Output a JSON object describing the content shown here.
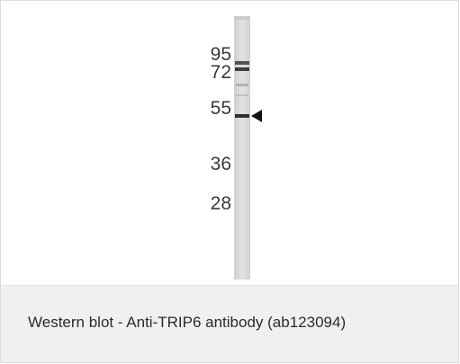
{
  "figure": {
    "markers": [
      {
        "label": "95"
      },
      {
        "label": "72"
      },
      {
        "label": "55"
      },
      {
        "label": "36"
      },
      {
        "label": "28"
      }
    ],
    "band_arrow_icon": "left-pointing-triangle",
    "colors": {
      "lane": "#dcdcdc",
      "band": "#2e2e2e",
      "arrow": "#111111"
    }
  },
  "caption": {
    "text": "Western blot - Anti-TRIP6 antibody (ab123094)"
  }
}
